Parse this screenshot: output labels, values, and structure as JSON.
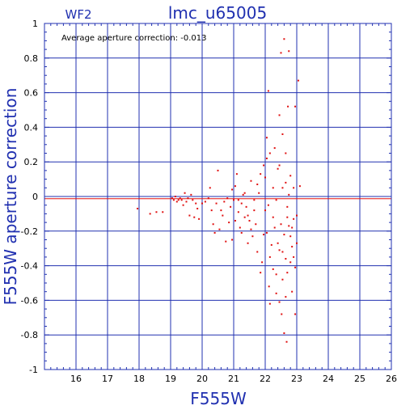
{
  "chart_data": {
    "type": "scatter",
    "panel_label": "WF2",
    "title": "lmc_u65005",
    "annotation": "Average aperture correction:  -0.013",
    "xlabel": "F555W",
    "ylabel": "F555W aperture correction",
    "xlim": [
      15,
      26
    ],
    "ylim": [
      -1,
      1
    ],
    "xticks": [
      "16",
      "17",
      "18",
      "19",
      "20",
      "21",
      "22",
      "23",
      "24",
      "25",
      "26"
    ],
    "yticks": [
      "-1",
      "-0.8",
      "-0.6",
      "-0.4",
      "-0.2",
      "0",
      "0.2",
      "0.4",
      "0.6",
      "0.8",
      "1"
    ],
    "grid": true,
    "reference_lines": {
      "zero": 0,
      "average": -0.013
    },
    "colors": {
      "axes": "#2030b0",
      "grid": "#2030b0",
      "points": "#e01010",
      "average_line": "#e01010",
      "text": "#2030b0"
    },
    "points": [
      [
        17.95,
        -0.07
      ],
      [
        18.35,
        -0.1
      ],
      [
        18.55,
        -0.09
      ],
      [
        18.75,
        -0.09
      ],
      [
        19.05,
        -0.01
      ],
      [
        19.1,
        -0.02
      ],
      [
        19.15,
        0.0
      ],
      [
        19.2,
        -0.03
      ],
      [
        19.25,
        -0.02
      ],
      [
        19.3,
        -0.01
      ],
      [
        19.35,
        -0.02
      ],
      [
        19.4,
        -0.05
      ],
      [
        19.45,
        0.02
      ],
      [
        19.5,
        -0.03
      ],
      [
        19.55,
        -0.01
      ],
      [
        19.6,
        -0.11
      ],
      [
        19.65,
        0.01
      ],
      [
        19.7,
        -0.02
      ],
      [
        19.75,
        -0.12
      ],
      [
        19.8,
        -0.04
      ],
      [
        19.85,
        -0.07
      ],
      [
        19.9,
        -0.13
      ],
      [
        20.0,
        -0.04
      ],
      [
        20.1,
        -0.03
      ],
      [
        20.2,
        -0.01
      ],
      [
        20.25,
        0.05
      ],
      [
        20.3,
        -0.08
      ],
      [
        20.35,
        -0.16
      ],
      [
        20.4,
        -0.21
      ],
      [
        20.45,
        -0.04
      ],
      [
        20.5,
        0.15
      ],
      [
        20.55,
        -0.19
      ],
      [
        20.6,
        -0.08
      ],
      [
        20.65,
        -0.11
      ],
      [
        20.7,
        -0.03
      ],
      [
        20.75,
        -0.26
      ],
      [
        20.8,
        -0.01
      ],
      [
        20.85,
        -0.15
      ],
      [
        20.9,
        -0.06
      ],
      [
        20.95,
        0.04
      ],
      [
        21.0,
        -0.02
      ],
      [
        21.05,
        0.06
      ],
      [
        21.1,
        0.13
      ],
      [
        21.15,
        -0.09
      ],
      [
        21.2,
        -0.18
      ],
      [
        21.25,
        -0.04
      ],
      [
        21.3,
        0.01
      ],
      [
        21.35,
        -0.12
      ],
      [
        21.4,
        -0.06
      ],
      [
        21.45,
        -0.27
      ],
      [
        21.5,
        -0.14
      ],
      [
        21.55,
        0.09
      ],
      [
        21.6,
        -0.23
      ],
      [
        21.65,
        -0.02
      ],
      [
        21.7,
        -0.16
      ],
      [
        21.75,
        -0.32
      ],
      [
        21.8,
        0.02
      ],
      [
        21.85,
        -0.44
      ],
      [
        21.9,
        -0.38
      ],
      [
        21.95,
        -0.22
      ],
      [
        22.0,
        0.11
      ],
      [
        22.05,
        0.22
      ],
      [
        22.05,
        0.34
      ],
      [
        22.1,
        -0.05
      ],
      [
        22.1,
        0.61
      ],
      [
        22.12,
        -0.52
      ],
      [
        22.15,
        0.25
      ],
      [
        22.2,
        -0.28
      ],
      [
        22.25,
        0.05
      ],
      [
        22.3,
        -0.18
      ],
      [
        22.35,
        -0.45
      ],
      [
        22.4,
        0.16
      ],
      [
        22.45,
        -0.61
      ],
      [
        22.45,
        0.47
      ],
      [
        22.5,
        0.83
      ],
      [
        22.52,
        -0.68
      ],
      [
        22.55,
        -0.32
      ],
      [
        22.6,
        0.91
      ],
      [
        22.6,
        -0.79
      ],
      [
        22.65,
        0.08
      ],
      [
        22.68,
        -0.84
      ],
      [
        22.7,
        -0.12
      ],
      [
        22.72,
        0.52
      ],
      [
        22.75,
        0.84
      ],
      [
        22.8,
        -0.38
      ],
      [
        22.85,
        -0.55
      ],
      [
        22.9,
        0.05
      ],
      [
        22.95,
        0.52
      ],
      [
        22.95,
        -0.68
      ],
      [
        23.0,
        -0.27
      ],
      [
        23.05,
        0.67
      ],
      [
        23.1,
        0.06
      ],
      [
        22.0,
        -0.08
      ],
      [
        22.05,
        -0.21
      ],
      [
        22.15,
        -0.35
      ],
      [
        22.25,
        -0.12
      ],
      [
        22.35,
        -0.02
      ],
      [
        22.4,
        -0.27
      ],
      [
        22.5,
        -0.16
      ],
      [
        22.55,
        0.05
      ],
      [
        22.6,
        -0.22
      ],
      [
        22.65,
        -0.36
      ],
      [
        22.7,
        -0.06
      ],
      [
        22.75,
        -0.17
      ],
      [
        22.8,
        0.12
      ],
      [
        22.85,
        -0.29
      ],
      [
        22.9,
        -0.13
      ],
      [
        22.95,
        -0.41
      ],
      [
        23.0,
        -0.11
      ],
      [
        21.95,
        0.18
      ],
      [
        21.85,
        0.13
      ],
      [
        21.75,
        0.07
      ],
      [
        21.65,
        -0.08
      ],
      [
        21.55,
        -0.19
      ],
      [
        21.45,
        -0.11
      ],
      [
        21.35,
        0.02
      ],
      [
        21.25,
        -0.21
      ],
      [
        21.15,
        -0.02
      ],
      [
        21.05,
        -0.14
      ],
      [
        20.95,
        -0.25
      ],
      [
        22.3,
        0.28
      ],
      [
        22.45,
        0.18
      ],
      [
        22.55,
        0.36
      ],
      [
        22.65,
        0.25
      ],
      [
        22.75,
        0.01
      ],
      [
        22.85,
        -0.18
      ],
      [
        22.35,
        -0.56
      ],
      [
        22.25,
        -0.42
      ],
      [
        22.15,
        -0.62
      ],
      [
        22.55,
        -0.48
      ],
      [
        22.65,
        -0.58
      ],
      [
        22.45,
        -0.31
      ],
      [
        22.7,
        -0.44
      ],
      [
        22.8,
        -0.23
      ],
      [
        22.9,
        -0.35
      ]
    ]
  }
}
